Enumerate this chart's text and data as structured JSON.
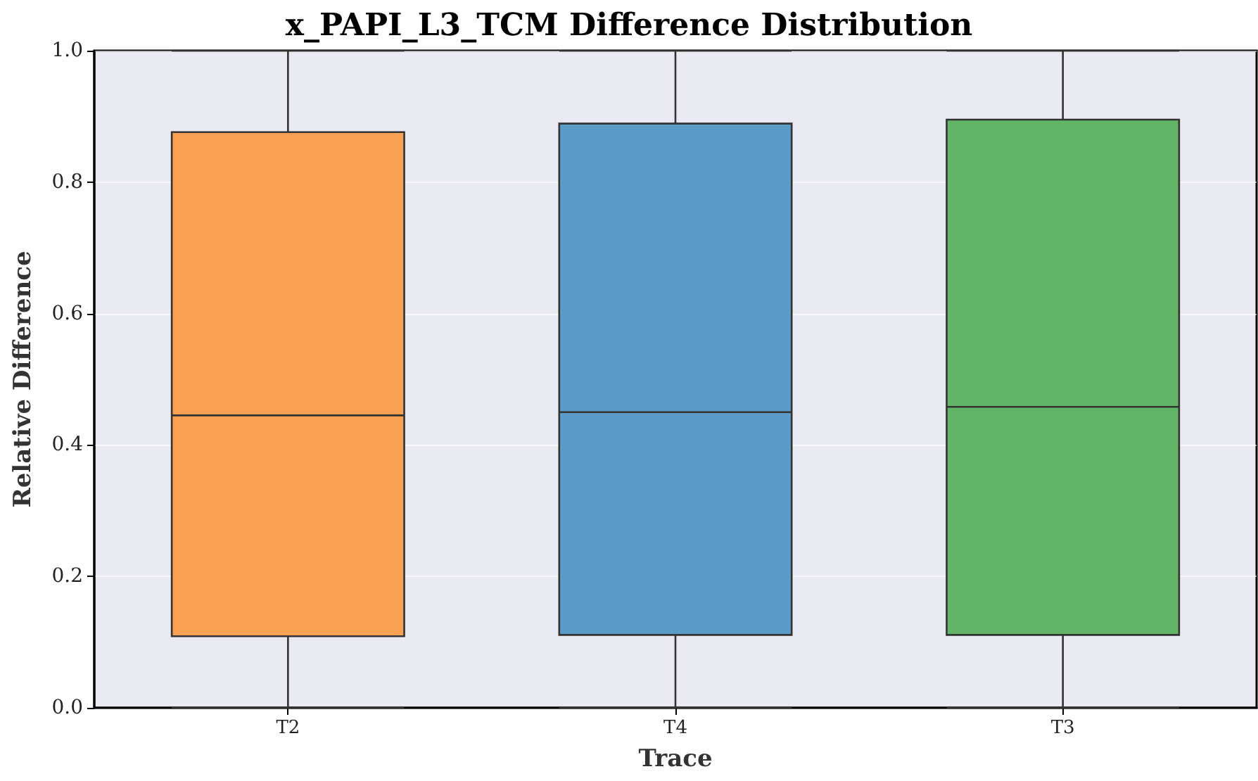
{
  "chart_data": {
    "type": "box",
    "title": "x_PAPI_L3_TCM Difference Distribution",
    "xlabel": "Trace",
    "ylabel": "Relative Difference",
    "categories": [
      "T2",
      "T4",
      "T3"
    ],
    "colors": [
      "#f9a052",
      "#5b9bc7",
      "#62b467"
    ],
    "boxes": [
      {
        "low": 0.0,
        "q1": 0.109,
        "median": 0.445,
        "q3": 0.876,
        "high": 1.0
      },
      {
        "low": 0.0,
        "q1": 0.111,
        "median": 0.45,
        "q3": 0.889,
        "high": 1.0
      },
      {
        "low": 0.0,
        "q1": 0.111,
        "median": 0.458,
        "q3": 0.895,
        "high": 1.0
      }
    ],
    "ylim": [
      0,
      1
    ],
    "yticks": [
      {
        "value": 0,
        "label": "0.0"
      },
      0.2,
      0.4,
      0.6,
      0.8,
      {
        "value": 1,
        "label": "1.0"
      }
    ],
    "grid": "y"
  }
}
